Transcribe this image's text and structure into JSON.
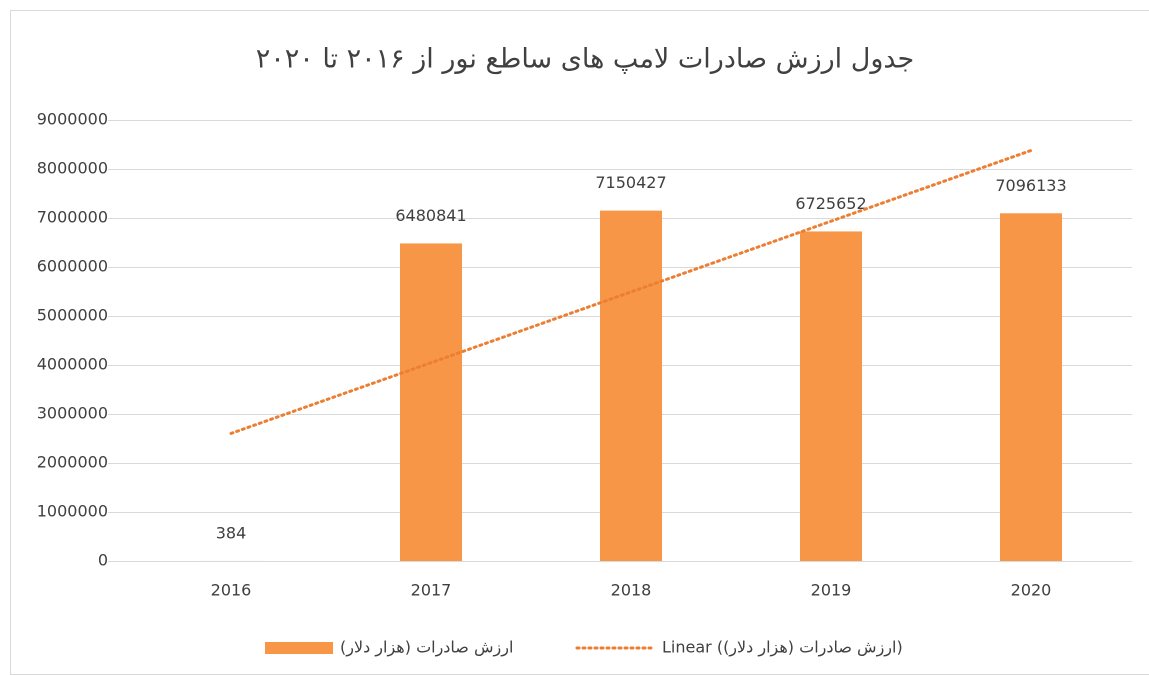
{
  "chart_data": {
    "type": "bar",
    "title": "جدول ارزش صادرات لامپ های ساطع نور از ۲۰۱۶ تا ۲۰۲۰",
    "categories": [
      "2016",
      "2017",
      "2018",
      "2019",
      "2020"
    ],
    "series": [
      {
        "name": "ارزش صادرات (هزار دلار)",
        "color": "#f79646",
        "values": [
          384,
          6480841,
          7150427,
          6725652,
          7096133
        ]
      }
    ],
    "trendline": {
      "type": "linear",
      "name": "Linear (ارزش صادرات (هزار دلار))",
      "color": "#ed7d31"
    },
    "ylim": [
      0,
      9000000
    ],
    "yticks": [
      0,
      1000000,
      2000000,
      3000000,
      4000000,
      5000000,
      6000000,
      7000000,
      8000000,
      9000000
    ],
    "grid": true,
    "data_labels": true,
    "legend": "bottom"
  }
}
